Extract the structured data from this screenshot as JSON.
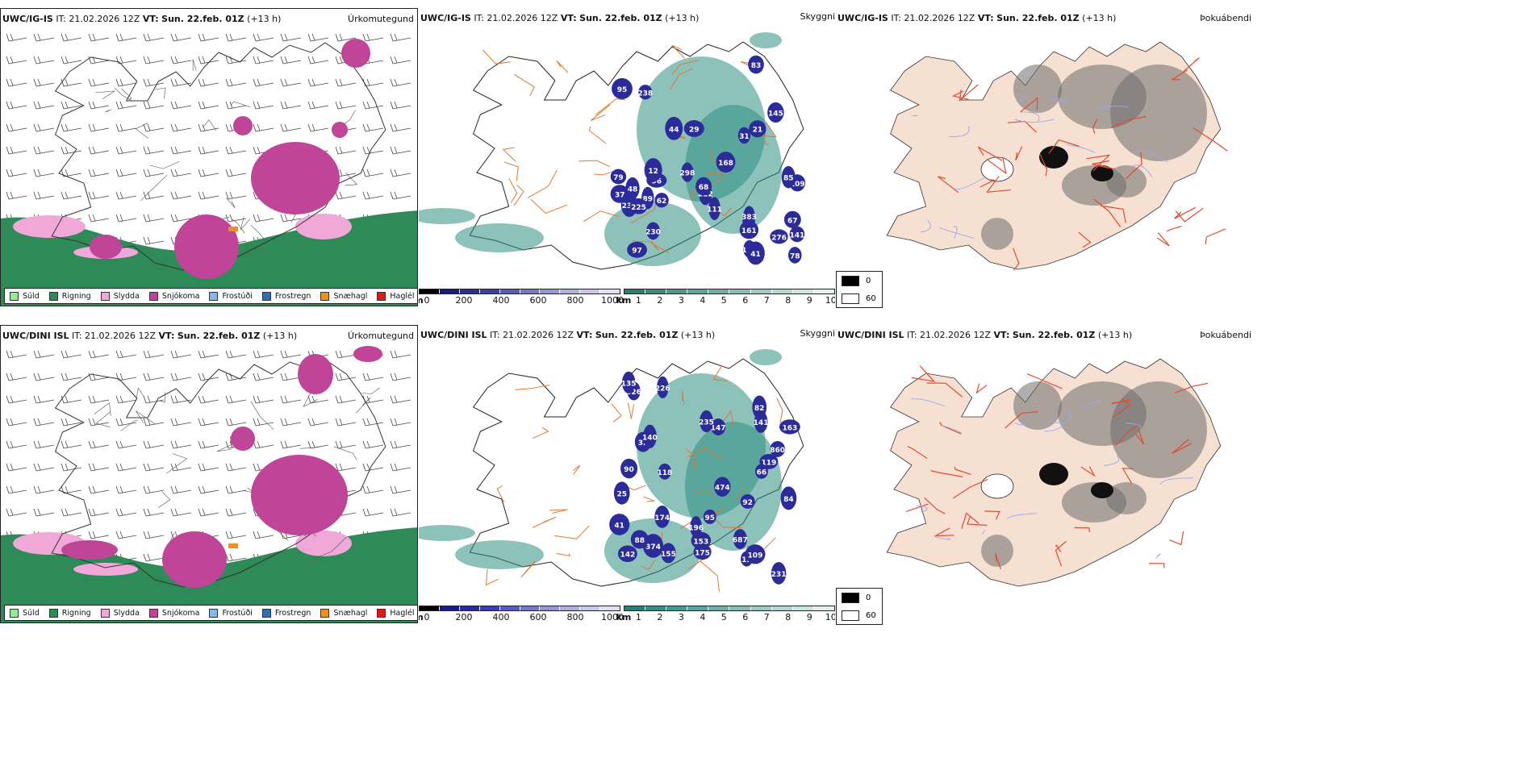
{
  "rows": [
    {
      "model": "UWC/IG-IS",
      "it_label": "IT:",
      "it_value": "21.02.2026 12Z",
      "vt_label": "VT:",
      "vt_value": "Sun. 22.feb. 01Z",
      "lead": "(+13 h)",
      "titles": {
        "precip": "Úrkomutegund",
        "visibility": "Skyggni",
        "fog": "Þokuábendi"
      }
    },
    {
      "model": "UWC/DINI ISL",
      "it_label": "IT:",
      "it_value": "21.02.2026 12Z",
      "vt_label": "VT:",
      "vt_value": "Sun. 22.feb. 01Z",
      "lead": "(+13 h)",
      "titles": {
        "precip": "Úrkomutegund",
        "visibility": "Skyggni",
        "fog": "Þokuábendi"
      }
    }
  ],
  "precip_legend": [
    {
      "label": "Súld",
      "color": "#90ee90"
    },
    {
      "label": "Rigning",
      "color": "#2e8b57"
    },
    {
      "label": "Slydda",
      "color": "#f0a8d8"
    },
    {
      "label": "Snjókoma",
      "color": "#c04598"
    },
    {
      "label": "Frostúði",
      "color": "#87b8e8"
    },
    {
      "label": "Frostregn",
      "color": "#2f6fb8"
    },
    {
      "label": "Snæhagl",
      "color": "#f09020"
    },
    {
      "label": "Haglél",
      "color": "#e01818"
    }
  ],
  "colors": {
    "rain": "#2e8b57",
    "sleet": "#f0a8d8",
    "snow": "#c04598",
    "hail": "#f09020",
    "ceiling": "#2b2c9a",
    "vis": "#2f8f83",
    "land": "#f6e0d2",
    "road": "#e07a30",
    "river": "#9aa8ee",
    "fogroad": "#e24b2e"
  },
  "height_scale": {
    "unit": "m",
    "ticks": [
      "0",
      "200",
      "400",
      "600",
      "800",
      "1000"
    ],
    "colors": [
      "#000000",
      "#1b1b80",
      "#2b2c9a",
      "#3c3eaa",
      "#5a5cba",
      "#7878c8",
      "#9696d6",
      "#b0b0e0",
      "#c8c8ea",
      "#e0e0f4"
    ]
  },
  "km_scale": {
    "unit": "km",
    "ticks": [
      "1",
      "2",
      "3",
      "4",
      "5",
      "6",
      "7",
      "8",
      "9",
      "10"
    ],
    "colors": [
      "#2a7f73",
      "#3b8b80",
      "#4c988d",
      "#5da49b",
      "#70b0a8",
      "#86beb6",
      "#9ccbc4",
      "#b3d8d2",
      "#cae4e0",
      "#e2f1ef"
    ]
  },
  "fog_scale": [
    {
      "label": "0",
      "color": "#000000"
    },
    {
      "label": "60",
      "color": "#ffffff"
    }
  ],
  "ceiling_labels": [
    [
      "97",
      "95",
      "31",
      "111",
      "37",
      "222",
      "141",
      "145",
      "79",
      "161",
      "96",
      "67",
      "29",
      "21",
      "78",
      "83",
      "238",
      "383",
      "298",
      "230",
      "276",
      "109",
      "89",
      "97",
      "230",
      "225",
      "48",
      "143",
      "168",
      "68",
      "12",
      "62",
      "85",
      "44",
      "41"
    ],
    [
      "860",
      "326",
      "119",
      "118",
      "25",
      "92",
      "142",
      "84",
      "141",
      "163",
      "153",
      "15",
      "147",
      "155",
      "32",
      "474",
      "90",
      "82",
      "687",
      "235",
      "226",
      "95",
      "374",
      "174",
      "109",
      "231",
      "196",
      "135",
      "140",
      "175",
      "88",
      "66",
      "41"
    ]
  ]
}
